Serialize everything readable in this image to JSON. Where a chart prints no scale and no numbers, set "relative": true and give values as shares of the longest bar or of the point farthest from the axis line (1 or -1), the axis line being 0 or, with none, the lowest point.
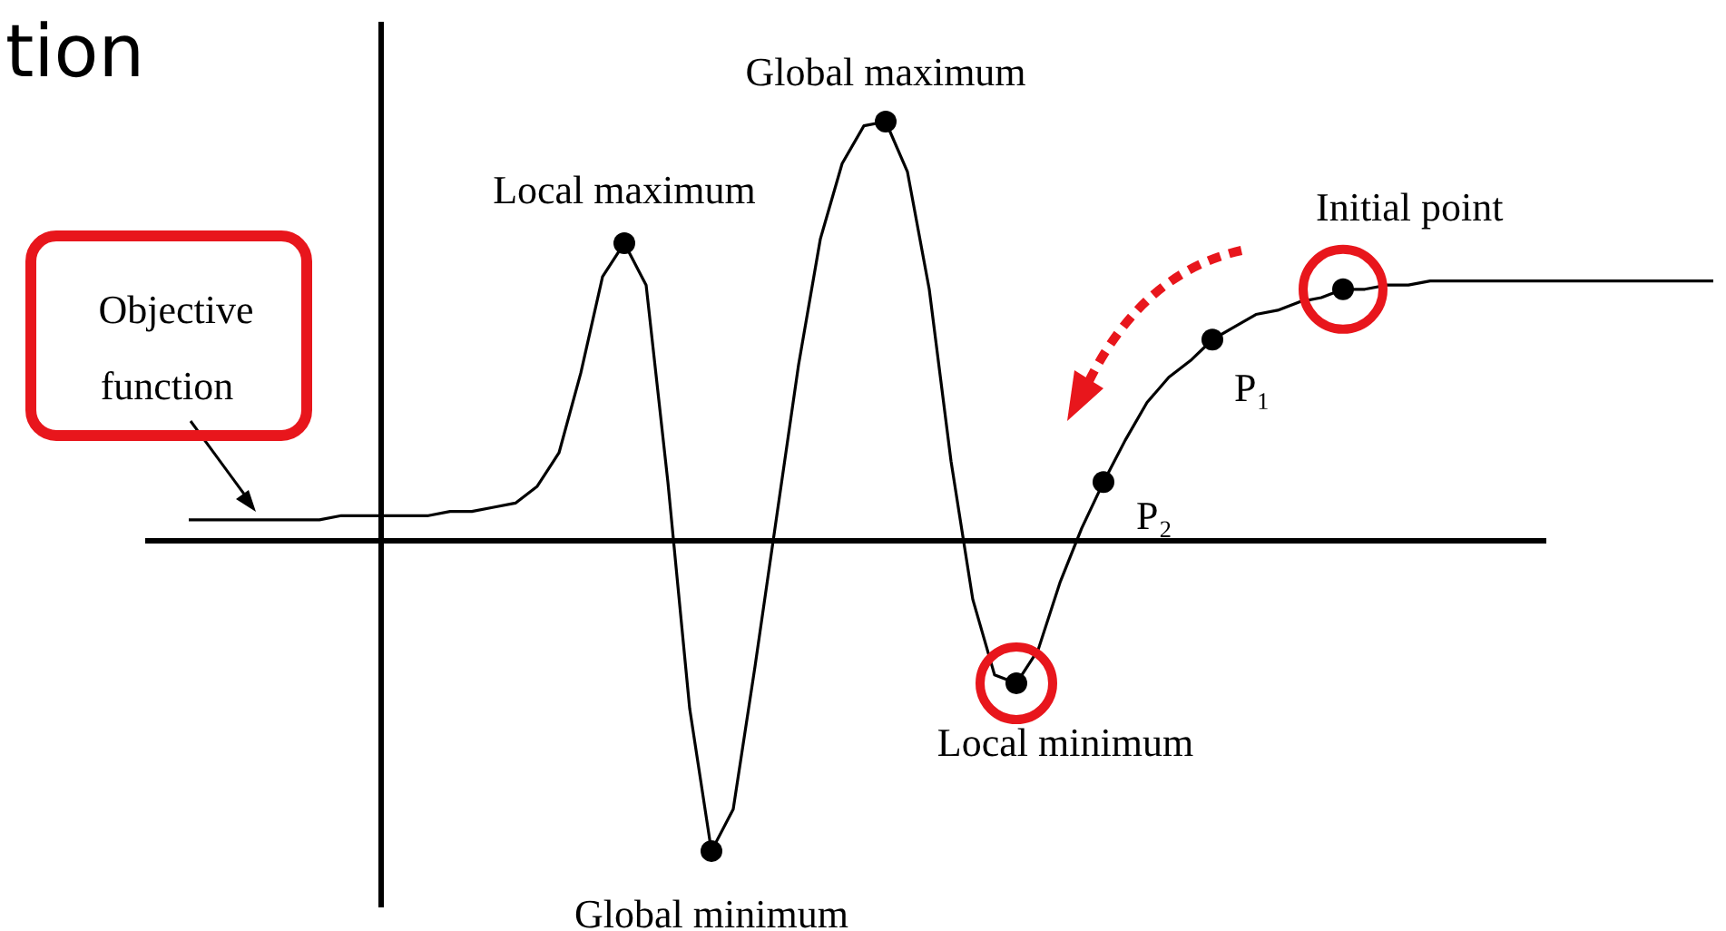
{
  "chart_data": {
    "type": "line",
    "relative": true,
    "title": "tion",
    "categories": [
      null,
      null,
      null,
      null,
      null,
      null,
      null,
      null,
      null,
      null,
      null,
      null,
      null,
      null,
      null,
      null,
      null,
      null,
      null,
      null,
      null,
      null,
      null,
      null,
      null,
      null,
      null,
      null,
      null,
      null,
      null,
      null,
      null,
      null,
      null,
      null,
      null,
      null,
      null,
      null,
      null,
      null,
      null,
      null,
      null,
      null,
      null,
      null,
      null,
      null,
      null,
      null,
      null,
      null,
      null,
      null,
      null,
      null,
      null,
      null,
      null,
      null,
      null,
      null,
      null,
      null,
      null,
      null,
      null,
      null,
      null
    ],
    "series": [
      {
        "color": "#000000",
        "values": [
          0.05,
          0.05,
          0.05,
          0.05,
          0.05,
          0.05,
          0.05,
          0.06,
          0.06,
          0.06,
          0.06,
          0.06,
          0.07,
          0.07,
          0.08,
          0.09,
          0.13,
          0.21,
          0.4,
          0.63,
          0.71,
          0.61,
          0.14,
          -0.4,
          -0.74,
          -0.64,
          -0.3,
          0.06,
          0.42,
          0.72,
          0.9,
          0.99,
          1,
          0.88,
          0.6,
          0.19,
          -0.14,
          -0.32,
          -0.34,
          -0.26,
          -0.1,
          0.03,
          0.14,
          0.24,
          0.33,
          0.39,
          0.43,
          0.48,
          0.51,
          0.54,
          0.55,
          0.57,
          0.58,
          0.6,
          0.6,
          0.61,
          0.61,
          0.62,
          0.62,
          0.62,
          0.62,
          0.62,
          0.62,
          0.62,
          0.62,
          0.62,
          0.62,
          0.62,
          0.62,
          0.62,
          0.62
        ]
      }
    ],
    "annotations": [
      "Local maximum",
      "Global minimum",
      "Global maximum",
      "Local minimum",
      "P₂",
      "P₁",
      "Initial point",
      "Objective function"
    ]
  }
}
